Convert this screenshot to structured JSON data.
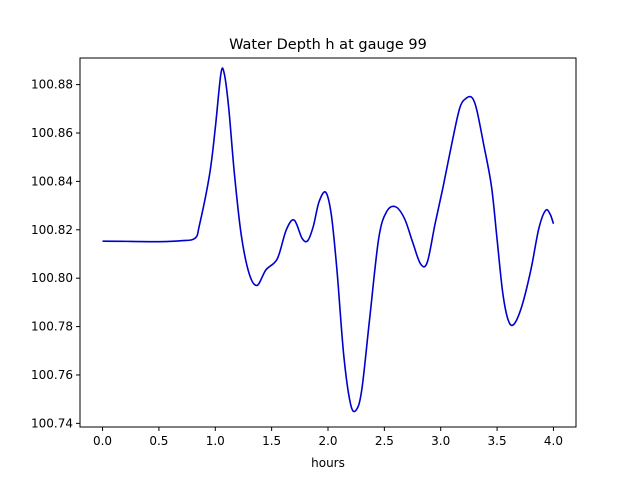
{
  "chart_data": {
    "type": "line",
    "title": "Water Depth h at gauge 99",
    "xlabel": "hours",
    "ylabel": "",
    "xlim": [
      -0.2,
      4.2
    ],
    "ylim": [
      100.7385,
      100.891
    ],
    "x_ticks": [
      0.0,
      0.5,
      1.0,
      1.5,
      2.0,
      2.5,
      3.0,
      3.5,
      4.0
    ],
    "x_tick_labels": [
      "0.0",
      "0.5",
      "1.0",
      "1.5",
      "2.0",
      "2.5",
      "3.0",
      "3.5",
      "4.0"
    ],
    "y_ticks": [
      100.74,
      100.76,
      100.78,
      100.8,
      100.82,
      100.84,
      100.86,
      100.88
    ],
    "y_tick_labels": [
      "100.74",
      "100.76",
      "100.78",
      "100.80",
      "100.82",
      "100.84",
      "100.86",
      "100.88"
    ],
    "grid": false,
    "series": [
      {
        "color": "#0000cc",
        "x": [
          0.0,
          0.25,
          0.5,
          0.7,
          0.82,
          0.86,
          0.95,
          1.0,
          1.05,
          1.08,
          1.12,
          1.17,
          1.23,
          1.3,
          1.37,
          1.45,
          1.55,
          1.63,
          1.7,
          1.77,
          1.82,
          1.87,
          1.92,
          1.98,
          2.03,
          2.08,
          2.14,
          2.2,
          2.25,
          2.3,
          2.37,
          2.45,
          2.52,
          2.6,
          2.68,
          2.75,
          2.82,
          2.88,
          2.95,
          3.02,
          3.1,
          3.17,
          3.23,
          3.28,
          3.32,
          3.38,
          3.45,
          3.5,
          3.55,
          3.6,
          3.65,
          3.72,
          3.8,
          3.87,
          3.93,
          3.97,
          4.0
        ],
        "y": [
          100.8153,
          100.8152,
          100.8151,
          100.8155,
          100.8165,
          100.822,
          100.843,
          100.862,
          100.8845,
          100.8845,
          100.87,
          100.843,
          100.818,
          100.802,
          100.797,
          100.8035,
          100.808,
          100.82,
          100.824,
          100.8165,
          100.8155,
          100.8215,
          100.8315,
          100.8355,
          100.826,
          100.803,
          100.768,
          100.748,
          100.7455,
          100.754,
          100.7835,
          100.8165,
          100.8275,
          100.8295,
          100.8245,
          100.815,
          100.806,
          100.8065,
          100.8225,
          100.8375,
          100.856,
          100.8705,
          100.8745,
          100.8745,
          100.8695,
          100.8555,
          100.838,
          100.816,
          100.794,
          100.7825,
          100.781,
          100.7885,
          100.8035,
          100.8205,
          100.828,
          100.8265,
          100.8225
        ]
      }
    ]
  }
}
